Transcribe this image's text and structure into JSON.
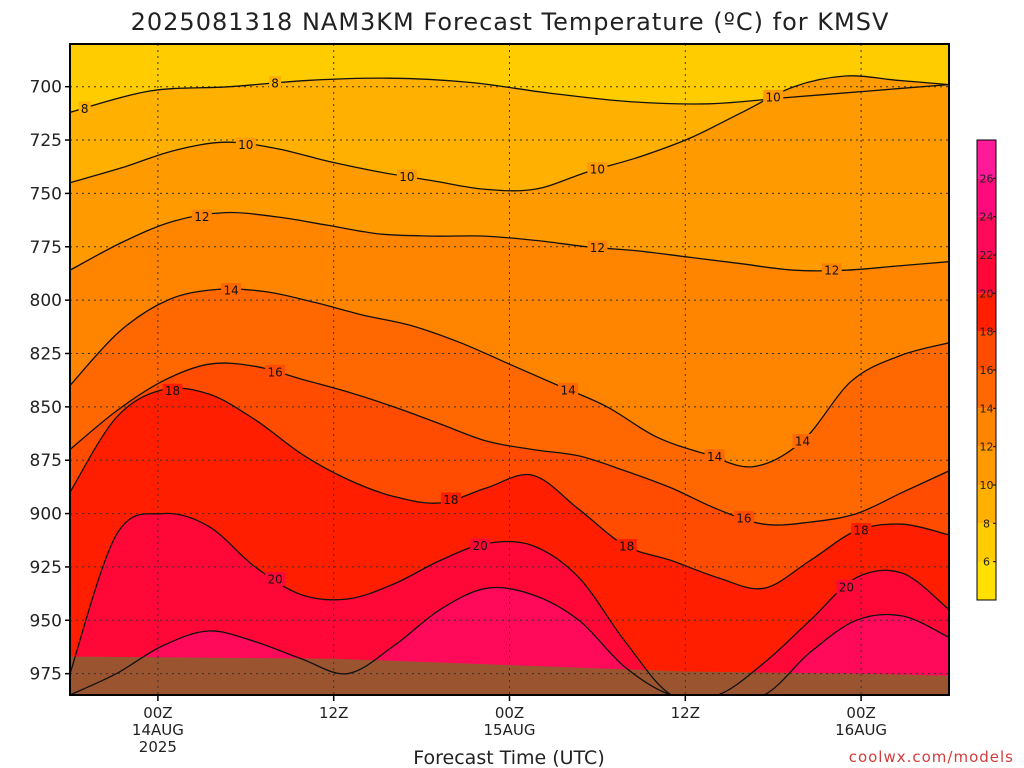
{
  "chart_data": {
    "type": "heatmap",
    "title": "2025081318 NAM3KM Forecast Temperature (ºC) for KMSV",
    "xlabel": "Forecast Time (UTC)",
    "ylabel": "",
    "credit": "coolwx.com/models",
    "y_axis": {
      "unit": "hPa",
      "range": [
        985,
        680
      ],
      "ticks": [
        "700",
        "725",
        "750",
        "775",
        "800",
        "825",
        "850",
        "875",
        "900",
        "925",
        "950",
        "975"
      ]
    },
    "x_axis": {
      "range_hours": [
        -6,
        54
      ],
      "ticks": [
        {
          "hour": 0,
          "lines": [
            "00Z",
            "14AUG",
            "2025"
          ]
        },
        {
          "hour": 12,
          "lines": [
            "12Z"
          ]
        },
        {
          "hour": 24,
          "lines": [
            "00Z",
            "15AUG"
          ]
        },
        {
          "hour": 36,
          "lines": [
            "12Z"
          ]
        },
        {
          "hour": 48,
          "lines": [
            "00Z",
            "16AUG"
          ]
        }
      ]
    },
    "grid": true,
    "legend": {
      "placement": "right",
      "ticks": [
        "6",
        "8",
        "10",
        "12",
        "14",
        "16",
        "18",
        "20",
        "22",
        "24",
        "26"
      ],
      "bands": [
        {
          "min": 4,
          "max": 6,
          "color": "#ffe000"
        },
        {
          "min": 6,
          "max": 8,
          "color": "#ffcc00"
        },
        {
          "min": 8,
          "max": 10,
          "color": "#ffb000"
        },
        {
          "min": 10,
          "max": 12,
          "color": "#ff9a00"
        },
        {
          "min": 12,
          "max": 14,
          "color": "#ff8400"
        },
        {
          "min": 14,
          "max": 16,
          "color": "#ff6800"
        },
        {
          "min": 16,
          "max": 18,
          "color": "#ff4c00"
        },
        {
          "min": 18,
          "max": 20,
          "color": "#ff1e00"
        },
        {
          "min": 20,
          "max": 22,
          "color": "#ff0838"
        },
        {
          "min": 22,
          "max": 24,
          "color": "#ff0a5a"
        },
        {
          "min": 24,
          "max": 26,
          "color": "#ff0a7a"
        },
        {
          "min": 26,
          "max": 28,
          "color": "#ff1a9a"
        }
      ]
    },
    "ground_color": "#9a5530",
    "contours": [
      {
        "level": 8,
        "pressures": [
          712,
          702,
          700,
          697,
          696,
          698,
          703,
          707,
          708,
          705,
          702,
          699
        ],
        "label_hours": [
          -5,
          8
        ]
      },
      {
        "level": 10,
        "pressures": [
          745,
          738,
          730,
          726,
          729,
          735,
          740,
          744,
          748,
          748,
          740,
          733,
          724,
          712,
          700,
          695,
          697,
          699
        ],
        "label_hours": [
          6,
          17,
          30,
          42
        ]
      },
      {
        "level": 12,
        "pressures": [
          786,
          773,
          763,
          759,
          761,
          765,
          769,
          770,
          770,
          772,
          775,
          777,
          780,
          783,
          786,
          786,
          784,
          782
        ],
        "label_hours": [
          3,
          30,
          46
        ]
      },
      {
        "level": 14,
        "pressures": [
          840,
          815,
          800,
          795,
          796,
          801,
          807,
          812,
          820,
          830,
          840,
          850,
          864,
          872,
          878,
          866,
          838,
          826,
          820
        ],
        "label_hours": [
          5,
          28,
          38,
          44
        ]
      },
      {
        "level": 16,
        "pressures": [
          870,
          852,
          838,
          830,
          831,
          837,
          843,
          850,
          858,
          866,
          870,
          873,
          880,
          888,
          898,
          905,
          904,
          900,
          890,
          880
        ],
        "label_hours": [
          8,
          40
        ]
      },
      {
        "level": 18,
        "pressures": [
          890,
          855,
          842,
          844,
          856,
          872,
          884,
          892,
          895,
          888,
          882,
          898,
          915,
          922,
          930,
          935,
          922,
          908,
          905,
          910
        ],
        "label_hours": [
          1,
          20,
          32,
          48
        ]
      },
      {
        "level": 20,
        "pressures": [
          975,
          910,
          900,
          906,
          925,
          938,
          940,
          933,
          922,
          914,
          915,
          930,
          960,
          985,
          985,
          970,
          950,
          930,
          928,
          945
        ],
        "label_hours": [
          8,
          22,
          47
        ]
      },
      {
        "level": 22,
        "pressures": [
          985,
          975,
          962,
          955,
          960,
          968,
          975,
          962,
          945,
          935,
          938,
          950,
          972,
          985,
          985,
          985,
          965,
          950,
          948,
          958
        ],
        "label_hours": []
      }
    ]
  }
}
